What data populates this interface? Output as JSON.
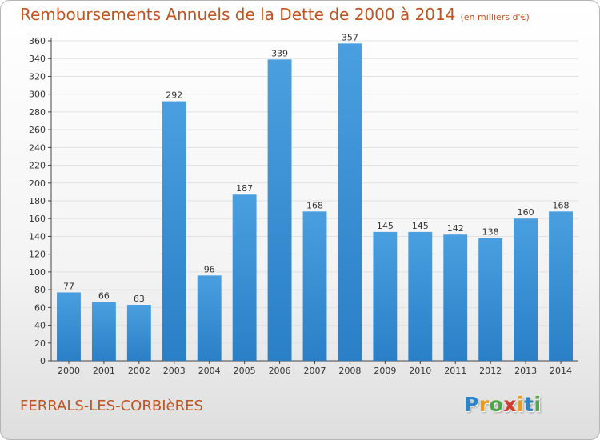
{
  "title": "Remboursements Annuels de la Dette de 2000 à 2014",
  "subtitle": "(en milliers d'€)",
  "commune": "FERRALS-LES-CORBIèRES",
  "logo": {
    "letters": [
      "P",
      "r",
      "o",
      "x",
      "i",
      "t",
      "i"
    ],
    "colors": [
      "#2b86c9",
      "#e89a1d",
      "#4aa845",
      "#d63a2e",
      "#e89a1d",
      "#2b86c9",
      "#4aa845"
    ]
  },
  "colors": {
    "bar": "#4a9fe0",
    "bar_dark": "#2a7fc6",
    "title": "#c0541f",
    "grid": "#e2e2e2"
  },
  "chart_data": {
    "type": "bar",
    "categories": [
      "2000",
      "2001",
      "2002",
      "2003",
      "2004",
      "2005",
      "2006",
      "2007",
      "2008",
      "2009",
      "2010",
      "2011",
      "2012",
      "2013",
      "2014"
    ],
    "values": [
      77,
      66,
      63,
      292,
      96,
      187,
      339,
      168,
      357,
      145,
      145,
      142,
      138,
      160,
      168
    ],
    "title": "Remboursements Annuels de la Dette de 2000 à 2014",
    "subtitle": "(en milliers d'€)",
    "xlabel": "",
    "ylabel": "",
    "ylim": [
      0,
      360
    ],
    "ytick_step": 20,
    "grid": true,
    "data_labels": true
  }
}
